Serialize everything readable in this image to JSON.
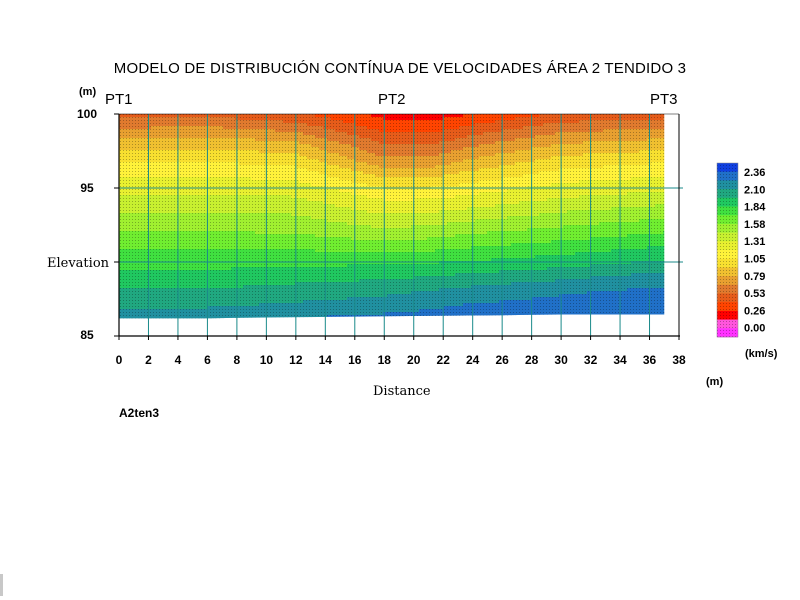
{
  "chart_data": {
    "type": "heatmap",
    "title": "MODELO DE DISTRIBUCIÓN CONTÍNUA DE VELOCIDADES ÁREA 2 TENDIDO 3",
    "subtitle": "A2ten3",
    "xlabel": "Distance",
    "x_unit": "(m)",
    "ylabel": "Elevation",
    "y_unit": "(m)",
    "value_unit": "(km/s)",
    "xlim": [
      0,
      38
    ],
    "ylim": [
      85,
      100
    ],
    "x_ticks": [
      "0",
      "2",
      "4",
      "6",
      "8",
      "10",
      "12",
      "14",
      "16",
      "18",
      "20",
      "22",
      "24",
      "26",
      "28",
      "30",
      "32",
      "34",
      "36",
      "38"
    ],
    "y_ticks": [
      "100",
      "95",
      "85"
    ],
    "y_ticks_values": [
      100,
      95,
      85
    ],
    "y_label_position_value": 90,
    "data_extent": {
      "x": [
        0,
        37
      ],
      "y_top": 100
    },
    "bottom_boundary": {
      "x": [
        0,
        6,
        10,
        20,
        30,
        37
      ],
      "y": [
        86.2,
        86.2,
        86.25,
        86.35,
        86.45,
        86.45
      ]
    },
    "stations": [
      {
        "label": "PT1",
        "x": 0
      },
      {
        "label": "PT2",
        "x": 18.5
      },
      {
        "label": "PT3",
        "x": 37
      }
    ],
    "colorbar": {
      "labels": [
        "2.36",
        "2.10",
        "1.84",
        "1.58",
        "1.31",
        "1.05",
        "0.79",
        "0.53",
        "0.26",
        "0.00"
      ],
      "levels": [
        0.0,
        0.13,
        0.26,
        0.4,
        0.53,
        0.66,
        0.79,
        0.92,
        1.05,
        1.18,
        1.31,
        1.45,
        1.58,
        1.71,
        1.84,
        1.97,
        2.1,
        2.23,
        2.36,
        2.49
      ],
      "colors": [
        "#ff33ff",
        "#ff55dd",
        "#ff0000",
        "#ff4400",
        "#e65c1a",
        "#e07a2e",
        "#e8a030",
        "#f0c030",
        "#f8e030",
        "#fff23a",
        "#e8f030",
        "#c8f030",
        "#a0f030",
        "#70ee30",
        "#40e040",
        "#20c860",
        "#20a880",
        "#2090a0",
        "#2070c8",
        "#1040e0"
      ]
    },
    "velocity_profiles": {
      "x_nodes": [
        0,
        6,
        12,
        18,
        21,
        24,
        30,
        37
      ],
      "elev_nodes": [
        100,
        99,
        98,
        97,
        96,
        95,
        94,
        93,
        92,
        91,
        90,
        89,
        88,
        87,
        86.2
      ],
      "values": [
        [
          0.6,
          0.8,
          1.0,
          1.15,
          1.28,
          1.4,
          1.52,
          1.62,
          1.72,
          1.82,
          1.92,
          2.02,
          2.12,
          2.22,
          2.3
        ],
        [
          0.62,
          0.82,
          1.0,
          1.15,
          1.28,
          1.4,
          1.52,
          1.62,
          1.72,
          1.82,
          1.92,
          2.02,
          2.12,
          2.22,
          2.32
        ],
        [
          0.55,
          0.75,
          0.95,
          1.1,
          1.25,
          1.38,
          1.5,
          1.6,
          1.7,
          1.82,
          1.94,
          2.05,
          2.16,
          2.26,
          2.36
        ],
        [
          0.35,
          0.5,
          0.66,
          0.8,
          1.0,
          1.18,
          1.34,
          1.48,
          1.62,
          1.78,
          1.94,
          2.08,
          2.2,
          2.3,
          2.4
        ],
        [
          0.32,
          0.48,
          0.64,
          0.8,
          1.0,
          1.18,
          1.35,
          1.5,
          1.65,
          1.8,
          1.96,
          2.1,
          2.24,
          2.34,
          2.42
        ],
        [
          0.4,
          0.58,
          0.76,
          0.92,
          1.08,
          1.24,
          1.4,
          1.55,
          1.7,
          1.84,
          1.98,
          2.14,
          2.28,
          2.38,
          2.45
        ],
        [
          0.55,
          0.75,
          0.92,
          1.08,
          1.22,
          1.36,
          1.5,
          1.63,
          1.76,
          1.9,
          2.04,
          2.2,
          2.34,
          2.42,
          2.46
        ],
        [
          0.6,
          0.8,
          0.98,
          1.14,
          1.28,
          1.42,
          1.56,
          1.7,
          1.84,
          1.98,
          2.12,
          2.28,
          2.4,
          2.46,
          2.48
        ]
      ]
    }
  }
}
